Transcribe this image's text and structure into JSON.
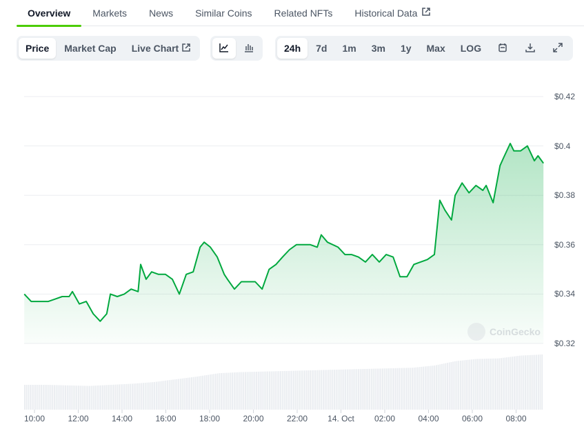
{
  "tabs": [
    {
      "label": "Overview",
      "active": true
    },
    {
      "label": "Markets"
    },
    {
      "label": "News"
    },
    {
      "label": "Similar Coins"
    },
    {
      "label": "Related NFTs"
    },
    {
      "label": "Historical Data",
      "external": true
    }
  ],
  "toolbar": {
    "metric_buttons": [
      {
        "label": "Price",
        "selected": true
      },
      {
        "label": "Market Cap"
      },
      {
        "label": "Live Chart",
        "external": true
      }
    ],
    "chart_type_buttons": [
      {
        "icon": "line-chart-icon",
        "selected": true
      },
      {
        "icon": "candlestick-chart-icon"
      }
    ],
    "range_buttons": [
      {
        "label": "24h",
        "selected": true
      },
      {
        "label": "7d"
      },
      {
        "label": "1m"
      },
      {
        "label": "3m"
      },
      {
        "label": "1y"
      },
      {
        "label": "Max"
      },
      {
        "label": "LOG"
      }
    ],
    "icon_buttons": [
      "calendar-icon",
      "download-icon",
      "expand-icon"
    ]
  },
  "watermark": "CoinGecko",
  "chart_data": {
    "type": "area",
    "color": "#00a83e",
    "yticks": [
      "$0.42",
      "$0.4",
      "$0.38",
      "$0.36",
      "$0.34",
      "$0.32"
    ],
    "ylim": [
      0.32,
      0.42
    ],
    "xticks": [
      "10:00",
      "12:00",
      "14:00",
      "16:00",
      "18:00",
      "20:00",
      "22:00",
      "14. Oct",
      "02:00",
      "04:00",
      "06:00",
      "08:00"
    ],
    "grid": true,
    "series": [
      [
        "13 09:32",
        0.34
      ],
      [
        "13 09:51",
        0.337
      ],
      [
        "13 10:09",
        0.337
      ],
      [
        "13 10:38",
        0.337
      ],
      [
        "13 10:57",
        0.338
      ],
      [
        "13 11:16",
        0.339
      ],
      [
        "13 11:35",
        0.339
      ],
      [
        "13 11:44",
        0.341
      ],
      [
        "13 12:03",
        0.336
      ],
      [
        "13 12:22",
        0.337
      ],
      [
        "13 12:41",
        0.332
      ],
      [
        "13 13:00",
        0.329
      ],
      [
        "13 13:18",
        0.332
      ],
      [
        "13 13:28",
        0.34
      ],
      [
        "13 13:47",
        0.339
      ],
      [
        "13 14:06",
        0.34
      ],
      [
        "13 14:25",
        0.342
      ],
      [
        "13 14:44",
        0.341
      ],
      [
        "13 14:51",
        0.352
      ],
      [
        "13 15:06",
        0.346
      ],
      [
        "13 15:21",
        0.349
      ],
      [
        "13 15:40",
        0.348
      ],
      [
        "13 15:59",
        0.348
      ],
      [
        "13 16:18",
        0.346
      ],
      [
        "13 16:37",
        0.34
      ],
      [
        "13 16:56",
        0.348
      ],
      [
        "13 17:15",
        0.349
      ],
      [
        "13 17:34",
        0.359
      ],
      [
        "13 17:45",
        0.361
      ],
      [
        "13 18:02",
        0.359
      ],
      [
        "13 18:21",
        0.355
      ],
      [
        "13 18:40",
        0.348
      ],
      [
        "13 18:49",
        0.346
      ],
      [
        "13 19:08",
        0.342
      ],
      [
        "13 19:27",
        0.345
      ],
      [
        "13 19:46",
        0.345
      ],
      [
        "13 20:05",
        0.345
      ],
      [
        "13 20:24",
        0.342
      ],
      [
        "13 20:43",
        0.35
      ],
      [
        "13 21:02",
        0.352
      ],
      [
        "13 21:20",
        0.355
      ],
      [
        "13 21:39",
        0.358
      ],
      [
        "13 21:58",
        0.36
      ],
      [
        "13 22:17",
        0.36
      ],
      [
        "13 22:36",
        0.36
      ],
      [
        "13 22:55",
        0.359
      ],
      [
        "13 23:06",
        0.364
      ],
      [
        "13 23:23",
        0.361
      ],
      [
        "13 23:52",
        0.359
      ],
      [
        "14 00:11",
        0.356
      ],
      [
        "14 00:29",
        0.356
      ],
      [
        "14 00:48",
        0.355
      ],
      [
        "14 01:07",
        0.353
      ],
      [
        "14 01:26",
        0.356
      ],
      [
        "14 01:45",
        0.353
      ],
      [
        "14 02:04",
        0.356
      ],
      [
        "14 02:23",
        0.355
      ],
      [
        "14 02:42",
        0.347
      ],
      [
        "14 03:01",
        0.347
      ],
      [
        "14 03:20",
        0.352
      ],
      [
        "14 03:38",
        0.353
      ],
      [
        "14 03:57",
        0.354
      ],
      [
        "14 04:16",
        0.356
      ],
      [
        "14 04:31",
        0.378
      ],
      [
        "14 04:45",
        0.374
      ],
      [
        "14 05:03",
        0.37
      ],
      [
        "14 05:13",
        0.38
      ],
      [
        "14 05:32",
        0.385
      ],
      [
        "14 05:51",
        0.381
      ],
      [
        "14 06:10",
        0.384
      ],
      [
        "14 06:29",
        0.382
      ],
      [
        "14 06:38",
        0.384
      ],
      [
        "14 06:57",
        0.377
      ],
      [
        "14 07:16",
        0.392
      ],
      [
        "14 07:25",
        0.395
      ],
      [
        "14 07:44",
        0.401
      ],
      [
        "14 07:54",
        0.398
      ],
      [
        "14 08:12",
        0.398
      ],
      [
        "14 08:31",
        0.4
      ],
      [
        "14 08:50",
        0.394
      ],
      [
        "14 09:00",
        0.396
      ],
      [
        "14 09:15",
        0.393
      ]
    ],
    "volume_relative": [
      0.45,
      0.45,
      0.44,
      0.43,
      0.45,
      0.47,
      0.5,
      0.55,
      0.6,
      0.66,
      0.68,
      0.69,
      0.7,
      0.71,
      0.72,
      0.73,
      0.74,
      0.75,
      0.76,
      0.8,
      0.88,
      0.92,
      0.93,
      0.98,
      1.0
    ]
  }
}
